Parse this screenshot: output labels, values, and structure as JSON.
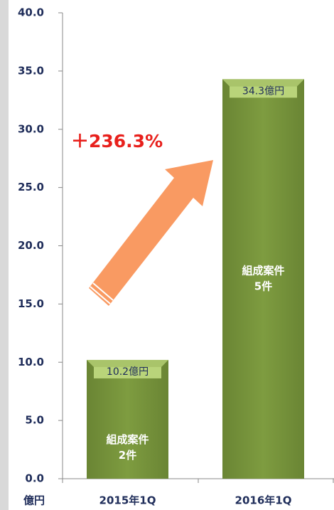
{
  "chart_data": {
    "type": "bar",
    "categories": [
      "2015年1Q",
      "2016年1Q"
    ],
    "values": [
      10.2,
      34.3
    ],
    "value_labels": [
      "10.2億円",
      "34.3億円"
    ],
    "bar_notes": [
      [
        "組成案件",
        "2件"
      ],
      [
        "組成案件",
        "5件"
      ]
    ],
    "color": "#77933c",
    "y_unit_label": "億円",
    "annotation": "＋236.3%",
    "ylim": [
      0,
      40
    ],
    "yticks": [
      {
        "value": 0,
        "label": "0.0"
      },
      {
        "value": 5,
        "label": "5.0"
      },
      {
        "value": 10,
        "label": "10.0"
      },
      {
        "value": 15,
        "label": "15.0"
      },
      {
        "value": 20,
        "label": "20.0"
      },
      {
        "value": 25,
        "label": "25.0"
      },
      {
        "value": 30,
        "label": "30.0"
      },
      {
        "value": 35,
        "label": "35.0"
      },
      {
        "value": 40,
        "label": "40.0"
      }
    ],
    "grid": false
  }
}
